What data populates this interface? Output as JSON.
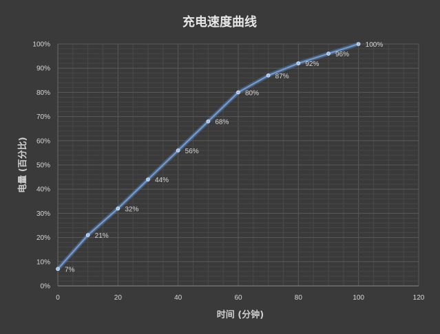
{
  "chart_data": {
    "type": "line",
    "title": "充电速度曲线",
    "xlabel": "时间 (分钟)",
    "ylabel": "电量 (百分比)",
    "x": [
      0,
      10,
      20,
      30,
      40,
      50,
      60,
      70,
      80,
      90,
      100
    ],
    "series": [
      {
        "values": [
          7,
          21,
          32,
          44,
          56,
          68,
          80,
          87,
          92,
          96,
          100
        ]
      }
    ],
    "data_labels": [
      "7%",
      "21%",
      "32%",
      "44%",
      "56%",
      "68%",
      "80%",
      "87%",
      "92%",
      "96%",
      "100%"
    ],
    "xlim": [
      0,
      120
    ],
    "ylim": [
      0,
      100
    ],
    "xticks": [
      0,
      20,
      40,
      60,
      80,
      100,
      120
    ],
    "yticks": [
      0,
      10,
      20,
      30,
      40,
      50,
      60,
      70,
      80,
      90,
      100
    ],
    "ytick_labels": [
      "0%",
      "10%",
      "20%",
      "30%",
      "40%",
      "50%",
      "60%",
      "70%",
      "80%",
      "90%",
      "100%"
    ],
    "grid": true,
    "legend": "none",
    "colors": {
      "line": "#6f9fdc",
      "marker": "#9cc2f0",
      "background": "#3a3a3a",
      "grid": "#555555"
    }
  }
}
